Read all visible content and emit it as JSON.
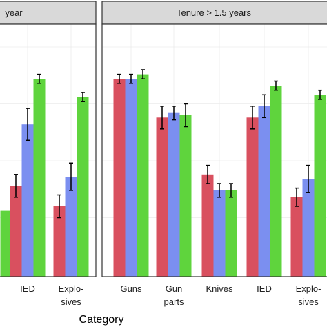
{
  "chart_data": [
    {
      "type": "bar",
      "panel_title": "year",
      "categories": [
        "",
        "IED",
        "Explo-\nsives"
      ],
      "ylim": [
        0,
        1
      ],
      "series": [
        {
          "color": "#d9505f",
          "values": [
            null,
            0.39,
            0.3
          ],
          "errors": [
            null,
            0.05,
            0.05
          ]
        },
        {
          "color": "#7b8ff0",
          "values": [
            null,
            0.66,
            0.43
          ],
          "errors": [
            null,
            0.07,
            0.06
          ]
        },
        {
          "color": "#5fd43d",
          "values": [
            0.28,
            0.86,
            0.78
          ],
          "errors": [
            null,
            0.02,
            0.02
          ]
        }
      ]
    },
    {
      "type": "bar",
      "panel_title": "Tenure > 1.5 years",
      "categories": [
        "Guns",
        "Gun\nparts",
        "Knives",
        "IED",
        "Explo-\nsives"
      ],
      "ylim": [
        0,
        1
      ],
      "series": [
        {
          "color": "#d9505f",
          "values": [
            0.86,
            0.69,
            0.44,
            0.69,
            0.34
          ],
          "errors": [
            0.02,
            0.05,
            0.04,
            0.05,
            0.04
          ]
        },
        {
          "color": "#7b8ff0",
          "values": [
            0.86,
            0.71,
            0.37,
            0.74,
            0.42
          ],
          "errors": [
            0.02,
            0.03,
            0.03,
            0.05,
            0.06
          ]
        },
        {
          "color": "#5fd43d",
          "values": [
            0.88,
            0.7,
            0.37,
            0.83,
            0.79
          ],
          "errors": [
            0.02,
            0.05,
            0.03,
            0.02,
            0.02
          ]
        }
      ]
    }
  ],
  "xlabel": "Category"
}
